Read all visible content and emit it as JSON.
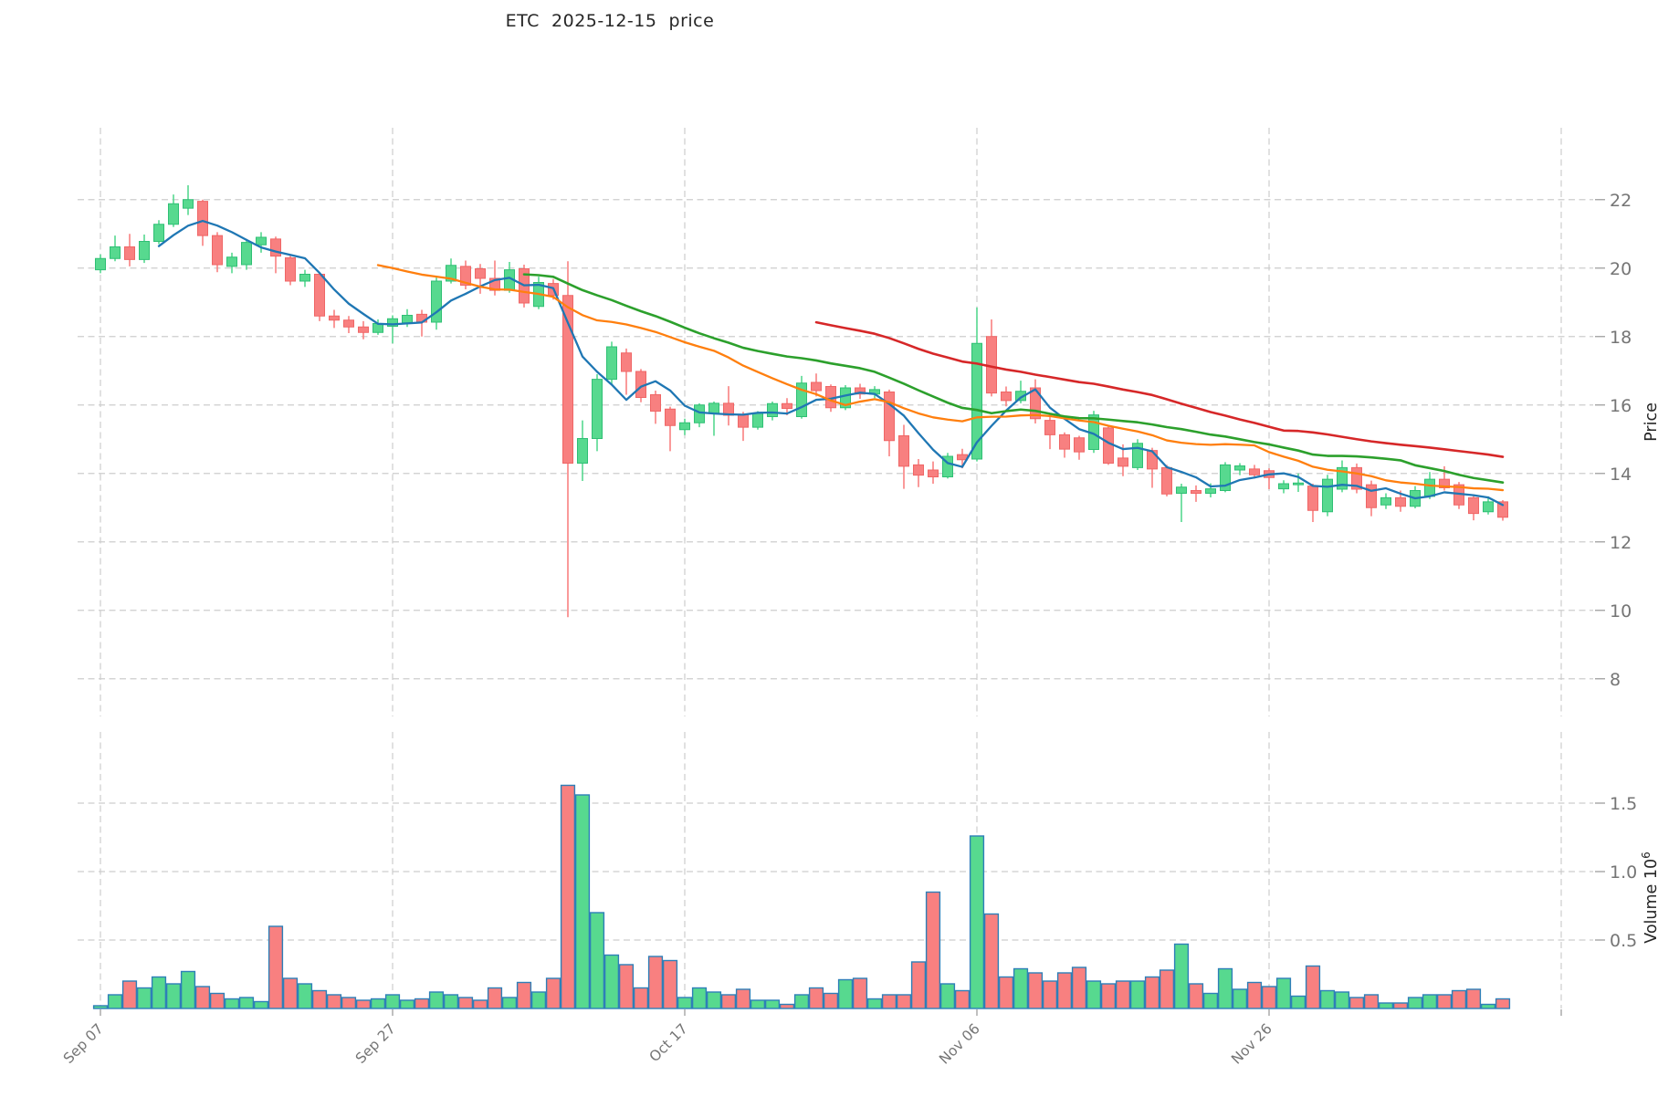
{
  "title": "ETC  2025-12-15  price",
  "chart_data": {
    "type": "candlestick",
    "title": "ETC  2025-12-15  price",
    "symbol": "ETC",
    "as_of_date": "2025-12-15",
    "x_axis": {
      "tick_labels": [
        "Sep 07",
        "Sep 27",
        "Oct 17",
        "Nov 06",
        "Nov 26"
      ],
      "tick_indices": [
        0,
        20,
        40,
        60,
        80
      ],
      "extra_unlabeled_tick_index": 100,
      "label_rotation_deg": 45
    },
    "price_axis": {
      "label": "Price",
      "ticks": [
        8,
        10,
        12,
        14,
        16,
        18,
        20,
        22
      ],
      "range": [
        6.9,
        24.1
      ],
      "side": "right"
    },
    "volume_axis": {
      "label": "Volume",
      "unit_base": "10",
      "unit_exponent": "6",
      "ticks": [
        0.5,
        1.0,
        1.5
      ],
      "tick_labels": [
        "0.5",
        "1.0",
        "1.5"
      ],
      "range": [
        0,
        1.83
      ],
      "side": "right"
    },
    "grid": {
      "on": true,
      "style": "dashed",
      "color": "#cdcdcd"
    },
    "legend": null,
    "moving_averages": [
      {
        "name": "MA5",
        "window": 5,
        "color": "#1f77b4",
        "width": 2.3
      },
      {
        "name": "MA20",
        "window": 20,
        "color": "#ff7f0e",
        "width": 2.3
      },
      {
        "name": "MA30",
        "window": 30,
        "color": "#2ca02c",
        "width": 2.6
      },
      {
        "name": "MA50",
        "window": 50,
        "color": "#d62728",
        "width": 2.6
      }
    ],
    "colors": {
      "up": "#57d98f",
      "down": "#f88080",
      "up_edge": "#2fbf74",
      "down_edge": "#ef6666",
      "volume_edge": "#2e7fb8",
      "grid": "#cdcdcd",
      "tick_label": "#757575",
      "tick_mark": "#9e9e9e",
      "axis_title": "#262626",
      "background": "#ffffff"
    },
    "columns": [
      "open",
      "high",
      "low",
      "close",
      "volume_millions"
    ],
    "start_label": "Sep 07",
    "candles": [
      [
        19.95,
        20.4,
        19.85,
        20.28,
        0.02
      ],
      [
        20.28,
        20.95,
        20.2,
        20.62,
        0.1
      ],
      [
        20.62,
        21.0,
        20.05,
        20.25,
        0.2
      ],
      [
        20.25,
        20.98,
        20.15,
        20.78,
        0.15
      ],
      [
        20.78,
        21.4,
        20.7,
        21.28,
        0.23
      ],
      [
        21.28,
        22.15,
        21.2,
        21.88,
        0.18
      ],
      [
        21.75,
        22.42,
        21.55,
        22.0,
        0.27
      ],
      [
        21.95,
        22.0,
        20.65,
        20.95,
        0.16
      ],
      [
        20.95,
        21.05,
        19.88,
        20.1,
        0.11
      ],
      [
        20.05,
        20.45,
        19.85,
        20.32,
        0.07
      ],
      [
        20.1,
        20.85,
        19.95,
        20.75,
        0.08
      ],
      [
        20.68,
        21.05,
        20.45,
        20.9,
        0.05
      ],
      [
        20.85,
        20.92,
        19.85,
        20.35,
        0.6
      ],
      [
        20.3,
        20.38,
        19.5,
        19.62,
        0.22
      ],
      [
        19.62,
        19.95,
        19.45,
        19.82,
        0.18
      ],
      [
        19.82,
        19.85,
        18.45,
        18.6,
        0.13
      ],
      [
        18.6,
        18.78,
        18.25,
        18.48,
        0.1
      ],
      [
        18.48,
        18.6,
        18.1,
        18.28,
        0.08
      ],
      [
        18.28,
        18.45,
        17.92,
        18.12,
        0.06
      ],
      [
        18.12,
        18.5,
        18.05,
        18.38,
        0.07
      ],
      [
        18.3,
        18.62,
        17.8,
        18.52,
        0.1
      ],
      [
        18.4,
        18.8,
        18.28,
        18.62,
        0.06
      ],
      [
        18.65,
        18.78,
        18.0,
        18.42,
        0.07
      ],
      [
        18.42,
        19.75,
        18.2,
        19.62,
        0.12
      ],
      [
        19.62,
        20.28,
        19.55,
        20.08,
        0.1
      ],
      [
        20.05,
        20.22,
        19.38,
        19.5,
        0.08
      ],
      [
        19.98,
        20.12,
        19.25,
        19.7,
        0.06
      ],
      [
        19.7,
        20.22,
        19.2,
        19.35,
        0.15
      ],
      [
        19.35,
        20.18,
        19.28,
        19.95,
        0.08
      ],
      [
        19.98,
        20.1,
        18.85,
        18.98,
        0.19
      ],
      [
        18.88,
        19.75,
        18.8,
        19.58,
        0.12
      ],
      [
        19.55,
        19.68,
        19.08,
        19.2,
        0.22
      ],
      [
        19.2,
        20.2,
        9.8,
        14.3,
        1.63
      ],
      [
        14.3,
        15.55,
        13.78,
        15.02,
        1.56
      ],
      [
        15.02,
        16.9,
        14.65,
        16.75,
        0.7
      ],
      [
        16.75,
        17.85,
        16.6,
        17.7,
        0.39
      ],
      [
        17.52,
        17.65,
        16.3,
        16.98,
        0.32
      ],
      [
        16.98,
        17.05,
        16.08,
        16.22,
        0.15
      ],
      [
        16.3,
        16.42,
        15.45,
        15.82,
        0.38
      ],
      [
        15.88,
        15.95,
        14.65,
        15.4,
        0.35
      ],
      [
        15.28,
        15.6,
        15.12,
        15.48,
        0.08
      ],
      [
        15.48,
        16.05,
        15.35,
        16.0,
        0.15
      ],
      [
        15.75,
        16.1,
        15.1,
        16.05,
        0.12
      ],
      [
        16.05,
        16.55,
        15.4,
        15.7,
        0.1
      ],
      [
        15.72,
        15.8,
        14.95,
        15.35,
        0.14
      ],
      [
        15.35,
        15.82,
        15.28,
        15.76,
        0.06
      ],
      [
        15.66,
        16.1,
        15.55,
        16.04,
        0.06
      ],
      [
        16.04,
        16.2,
        15.7,
        15.9,
        0.03
      ],
      [
        15.66,
        16.85,
        15.6,
        16.64,
        0.1
      ],
      [
        16.66,
        16.92,
        16.25,
        16.42,
        0.15
      ],
      [
        16.54,
        16.6,
        15.8,
        15.92,
        0.11
      ],
      [
        15.92,
        16.58,
        15.85,
        16.5,
        0.21
      ],
      [
        16.5,
        16.62,
        16.18,
        16.32,
        0.22
      ],
      [
        16.32,
        16.55,
        16.2,
        16.45,
        0.07
      ],
      [
        16.38,
        16.45,
        14.5,
        14.96,
        0.1
      ],
      [
        15.1,
        15.42,
        13.55,
        14.21,
        0.1
      ],
      [
        14.25,
        14.42,
        13.6,
        13.95,
        0.34
      ],
      [
        14.1,
        14.35,
        13.7,
        13.9,
        0.85
      ],
      [
        13.9,
        14.6,
        13.85,
        14.5,
        0.18
      ],
      [
        14.55,
        14.72,
        14.15,
        14.4,
        0.13
      ],
      [
        14.42,
        18.85,
        14.35,
        17.8,
        1.26
      ],
      [
        18.0,
        18.5,
        16.25,
        16.35,
        0.69
      ],
      [
        16.38,
        16.54,
        15.96,
        16.13,
        0.23
      ],
      [
        16.13,
        16.71,
        16.05,
        16.4,
        0.29
      ],
      [
        16.5,
        16.75,
        15.46,
        15.6,
        0.26
      ],
      [
        15.55,
        15.75,
        14.71,
        15.13,
        0.2
      ],
      [
        15.13,
        15.2,
        14.46,
        14.71,
        0.26
      ],
      [
        15.04,
        15.1,
        14.4,
        14.63,
        0.3
      ],
      [
        14.7,
        15.83,
        14.6,
        15.71,
        0.2
      ],
      [
        15.33,
        15.4,
        14.25,
        14.3,
        0.18
      ],
      [
        14.45,
        14.85,
        13.92,
        14.21,
        0.2
      ],
      [
        14.17,
        15.0,
        14.1,
        14.88,
        0.2
      ],
      [
        14.67,
        14.75,
        13.58,
        14.13,
        0.23
      ],
      [
        14.17,
        14.25,
        13.33,
        13.4,
        0.28
      ],
      [
        13.42,
        13.7,
        12.58,
        13.6,
        0.47
      ],
      [
        13.5,
        13.65,
        13.17,
        13.42,
        0.18
      ],
      [
        13.42,
        13.71,
        13.3,
        13.55,
        0.11
      ],
      [
        13.5,
        14.33,
        13.45,
        14.25,
        0.29
      ],
      [
        14.1,
        14.3,
        13.95,
        14.22,
        0.14
      ],
      [
        14.13,
        14.25,
        13.85,
        13.96,
        0.19
      ],
      [
        14.08,
        14.15,
        13.54,
        13.88,
        0.16
      ],
      [
        13.55,
        13.8,
        13.42,
        13.7,
        0.22
      ],
      [
        13.67,
        14.0,
        13.46,
        13.72,
        0.09
      ],
      [
        13.63,
        13.7,
        12.58,
        12.92,
        0.31
      ],
      [
        12.88,
        13.96,
        12.75,
        13.83,
        0.13
      ],
      [
        13.54,
        14.38,
        13.45,
        14.17,
        0.12
      ],
      [
        14.17,
        14.29,
        13.42,
        13.54,
        0.08
      ],
      [
        13.67,
        13.79,
        12.75,
        13.0,
        0.1
      ],
      [
        13.08,
        13.42,
        12.96,
        13.29,
        0.04
      ],
      [
        13.29,
        13.5,
        12.88,
        13.04,
        0.04
      ],
      [
        13.04,
        13.63,
        12.98,
        13.5,
        0.08
      ],
      [
        13.33,
        14.04,
        13.25,
        13.83,
        0.1
      ],
      [
        13.83,
        14.21,
        13.5,
        13.58,
        0.1
      ],
      [
        13.67,
        13.75,
        12.96,
        13.08,
        0.13
      ],
      [
        13.29,
        13.35,
        12.63,
        12.83,
        0.14
      ],
      [
        12.88,
        13.33,
        12.8,
        13.17,
        0.03
      ],
      [
        13.17,
        13.22,
        12.62,
        12.72,
        0.07
      ]
    ]
  }
}
